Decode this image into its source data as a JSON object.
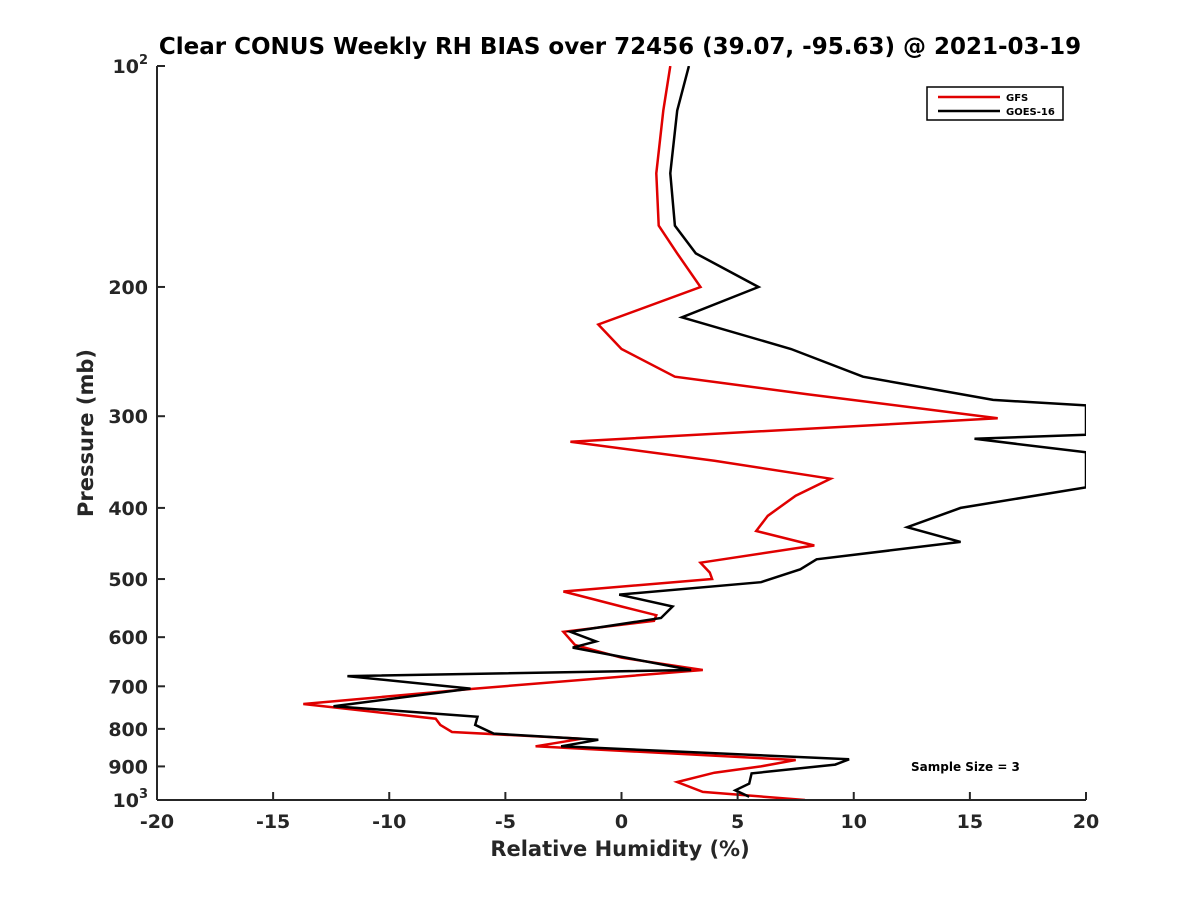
{
  "chart_data": {
    "type": "line",
    "title": "Clear CONUS Weekly RH BIAS over 72456 (39.07, -95.63) @ 2021-03-19",
    "xlabel": "Relative Humidity (%)",
    "ylabel": "Pressure (mb)",
    "xlim": [
      -20,
      20
    ],
    "ylim": [
      100,
      1000
    ],
    "yscale": "log",
    "y_reversed": true,
    "x_ticks": [
      -20,
      -15,
      -10,
      -5,
      0,
      5,
      10,
      15,
      20
    ],
    "x_tick_labels": [
      "-20",
      "-15",
      "-10",
      "-5",
      "0",
      "5",
      "10",
      "15",
      "20"
    ],
    "y_ticks": [
      100,
      200,
      300,
      400,
      500,
      600,
      700,
      800,
      900,
      1000
    ],
    "y_tick_labels": [
      {
        "base": "10",
        "exp": "2"
      },
      {
        "base": "200",
        "exp": ""
      },
      {
        "base": "300",
        "exp": ""
      },
      {
        "base": "400",
        "exp": ""
      },
      {
        "base": "500",
        "exp": ""
      },
      {
        "base": "600",
        "exp": ""
      },
      {
        "base": "700",
        "exp": ""
      },
      {
        "base": "800",
        "exp": ""
      },
      {
        "base": "900",
        "exp": ""
      },
      {
        "base": "10",
        "exp": "3"
      }
    ],
    "legend_position": "top-right",
    "annotation": "Sample Size = 3",
    "series": [
      {
        "name": "GFS",
        "color": "#e00000",
        "points": [
          [
            2.1,
            100
          ],
          [
            1.8,
            115
          ],
          [
            1.5,
            140
          ],
          [
            1.6,
            165
          ],
          [
            2.4,
            180
          ],
          [
            3.4,
            200
          ],
          [
            -1.0,
            225
          ],
          [
            0.0,
            243
          ],
          [
            2.3,
            265
          ],
          [
            8.0,
            280
          ],
          [
            16.2,
            302
          ],
          [
            -2.2,
            325
          ],
          [
            4.0,
            345
          ],
          [
            9.0,
            365
          ],
          [
            7.5,
            385
          ],
          [
            6.3,
            410
          ],
          [
            5.8,
            430
          ],
          [
            8.3,
            450
          ],
          [
            3.4,
            475
          ],
          [
            3.8,
            490
          ],
          [
            3.9,
            500
          ],
          [
            -2.5,
            520
          ],
          [
            0.0,
            545
          ],
          [
            1.5,
            560
          ],
          [
            1.4,
            570
          ],
          [
            -2.5,
            590
          ],
          [
            -2.0,
            615
          ],
          [
            0.0,
            640
          ],
          [
            3.5,
            665
          ],
          [
            -6.3,
            705
          ],
          [
            -13.7,
            740
          ],
          [
            -8.0,
            775
          ],
          [
            -7.8,
            790
          ],
          [
            -7.3,
            808
          ],
          [
            -1.7,
            825
          ],
          [
            -3.7,
            845
          ],
          [
            7.5,
            882
          ],
          [
            6.0,
            900
          ],
          [
            4.0,
            918
          ],
          [
            2.4,
            945
          ],
          [
            3.5,
            975
          ],
          [
            7.9,
            1000
          ]
        ]
      },
      {
        "name": "GOES-16",
        "color": "#000000",
        "points": [
          [
            2.9,
            100
          ],
          [
            2.4,
            115
          ],
          [
            2.1,
            140
          ],
          [
            2.3,
            165
          ],
          [
            3.2,
            180
          ],
          [
            5.9,
            200
          ],
          [
            2.6,
            220
          ],
          [
            7.3,
            243
          ],
          [
            10.4,
            265
          ],
          [
            16.0,
            285
          ],
          [
            20.0,
            290
          ],
          [
            20.0,
            318
          ],
          [
            15.2,
            322
          ],
          [
            20.0,
            336
          ],
          [
            20.0,
            375
          ],
          [
            14.6,
            400
          ],
          [
            12.3,
            425
          ],
          [
            14.6,
            445
          ],
          [
            8.4,
            470
          ],
          [
            7.7,
            485
          ],
          [
            6.0,
            505
          ],
          [
            -0.1,
            525
          ],
          [
            2.2,
            545
          ],
          [
            1.7,
            565
          ],
          [
            -2.2,
            590
          ],
          [
            -1.1,
            608
          ],
          [
            -2.1,
            620
          ],
          [
            3.0,
            665
          ],
          [
            -11.8,
            678
          ],
          [
            -6.5,
            705
          ],
          [
            -12.4,
            745
          ],
          [
            -6.2,
            770
          ],
          [
            -6.3,
            790
          ],
          [
            -5.5,
            812
          ],
          [
            -1.0,
            828
          ],
          [
            -2.6,
            845
          ],
          [
            9.8,
            880
          ],
          [
            9.2,
            895
          ],
          [
            5.6,
            920
          ],
          [
            5.5,
            950
          ],
          [
            4.9,
            970
          ],
          [
            5.5,
            990
          ]
        ]
      }
    ]
  }
}
